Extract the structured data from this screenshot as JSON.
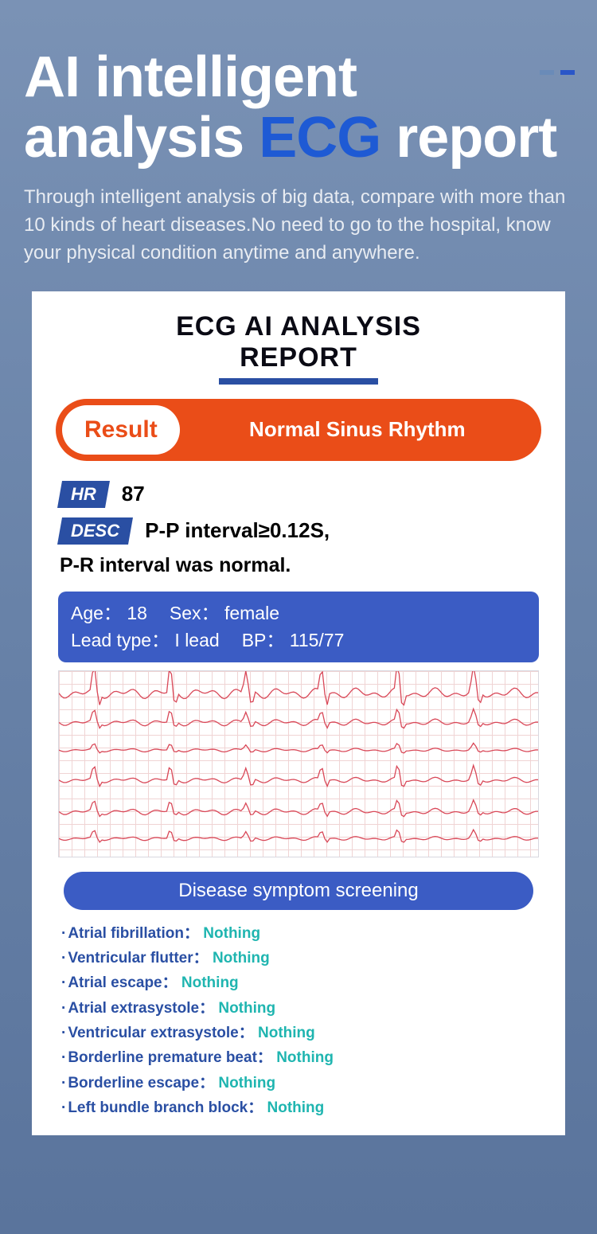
{
  "colors": {
    "accent_blue": "#1e5ad4",
    "orange": "#ea4d18",
    "tag_blue": "#2a4fa3",
    "panel_blue": "#3b5cc4",
    "pill_blue": "#3b5cc4",
    "teal": "#1fb5b0",
    "ecg_line": "#d94858",
    "decor1": "#6a8bb8",
    "decor2": "#2a56c8"
  },
  "header": {
    "title_part1": "AI intelligent analysis ",
    "title_accent": "ECG",
    "title_part2": " report",
    "subtitle": "Through intelligent analysis of big data, compare with more than 10 kinds of heart diseases.No need to go to the hospital, know your physical condition anytime and anywhere."
  },
  "report": {
    "title_line1": "ECG AI ANALYSIS",
    "title_line2": "REPORT",
    "result_label": "Result",
    "result_value": "Normal Sinus Rhythm",
    "hr_tag": "HR",
    "hr_value": "87",
    "desc_tag": "DESC",
    "desc_value1": "P-P interval≥0.12S,",
    "desc_value2": "P-R interval was normal.",
    "patient": {
      "age_label": "Age：",
      "age_value": "18",
      "sex_label": "Sex：",
      "sex_value": "female",
      "lead_label": "Lead type：",
      "lead_value": "I lead",
      "bp_label": "BP：",
      "bp_value": "115/77"
    },
    "screening_title": "Disease symptom screening",
    "screening": [
      {
        "label": "Atrial fibrillation：",
        "value": "Nothing"
      },
      {
        "label": "Ventricular flutter：",
        "value": "Nothing"
      },
      {
        "label": "Atrial escape：",
        "value": "Nothing"
      },
      {
        "label": "Atrial extrasystole：",
        "value": "Nothing"
      },
      {
        "label": "Ventricular extrasystole：",
        "value": "Nothing"
      },
      {
        "label": "Borderline premature beat：",
        "value": "Nothing"
      },
      {
        "label": "Borderline escape：",
        "value": "Nothing"
      },
      {
        "label": "Left bundle branch block：",
        "value": "Nothing"
      }
    ]
  }
}
